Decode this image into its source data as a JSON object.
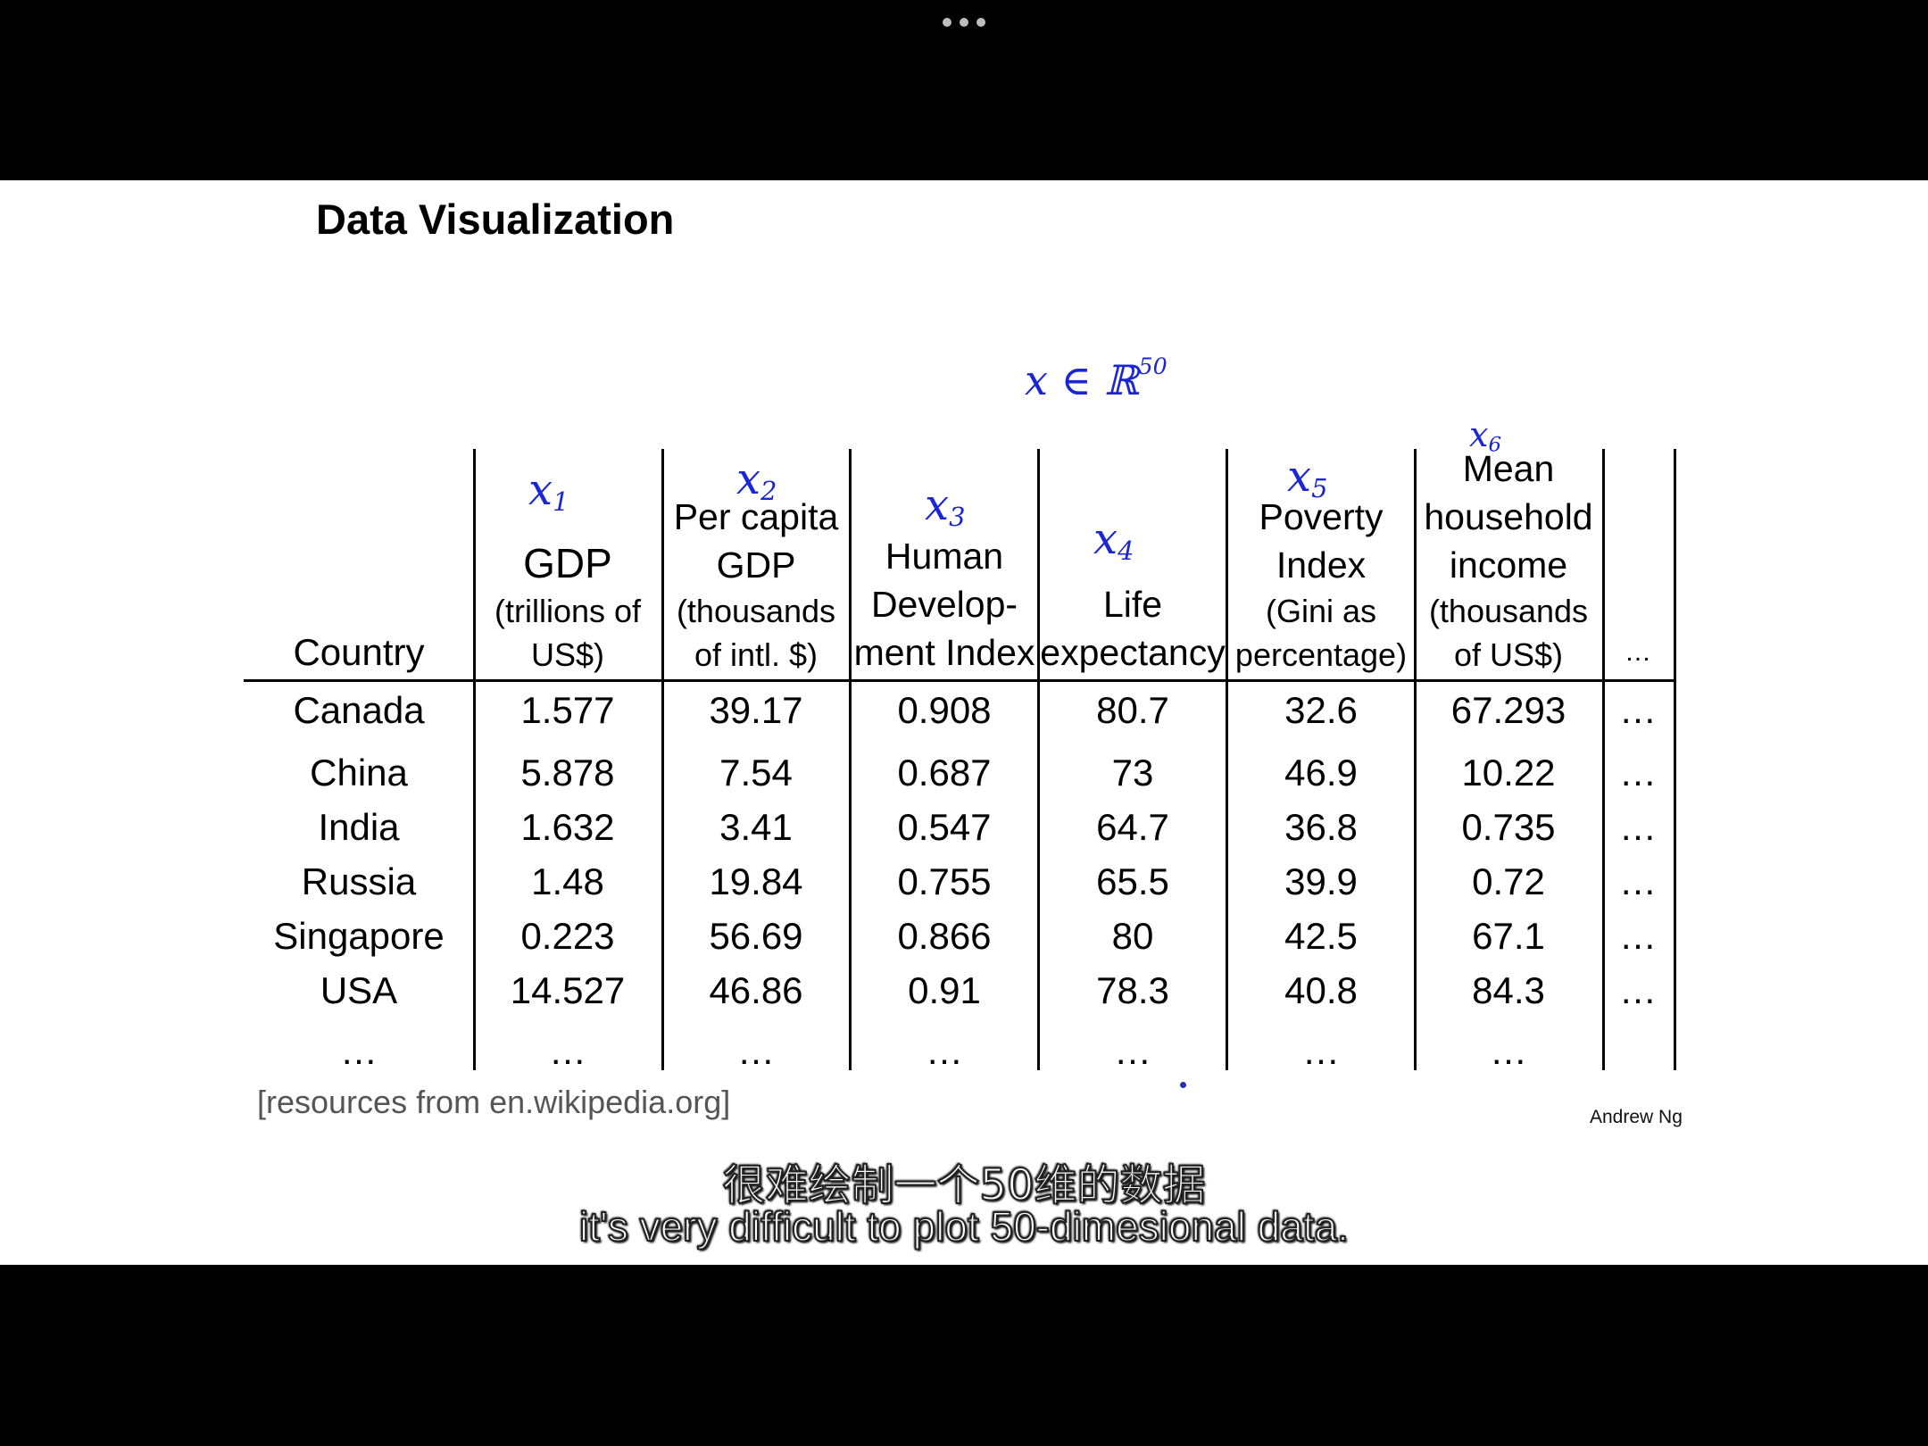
{
  "slide": {
    "title": "Data Visualization",
    "annotation": {
      "var": "x",
      "op": "∈",
      "set": "ℝ",
      "exp": "50"
    },
    "columns": [
      {
        "hw": "x",
        "hw_sub": "1",
        "lines": [
          "GDP"
        ],
        "sub_lines": [
          "(trillions of",
          "US$)"
        ]
      },
      {
        "hw": "x",
        "hw_sub": "2",
        "lines": [
          "Per capita",
          "GDP"
        ],
        "sub_lines": [
          "(thousands",
          "of intl. $)"
        ]
      },
      {
        "hw": "x",
        "hw_sub": "3",
        "lines": [
          "Human",
          "Develop-",
          "ment Index"
        ],
        "sub_lines": []
      },
      {
        "hw": "x",
        "hw_sub": "4",
        "lines": [
          "Life",
          "expectancy"
        ],
        "sub_lines": []
      },
      {
        "hw": "x",
        "hw_sub": "5",
        "lines": [
          "Poverty",
          "Index"
        ],
        "sub_lines": [
          "(Gini as",
          "percentage)"
        ]
      },
      {
        "hw": "x",
        "hw_sub": "6",
        "lines": [
          "Mean",
          "household",
          "income"
        ],
        "sub_lines": [
          "(thousands",
          "of US$)"
        ]
      },
      {
        "hw": "",
        "hw_sub": "",
        "lines": [
          "…"
        ],
        "sub_lines": []
      }
    ],
    "country_header": "Country",
    "rows": [
      {
        "country": "Canada",
        "values": [
          "1.577",
          "39.17",
          "0.908",
          "80.7",
          "32.6",
          "67.293",
          "…"
        ]
      },
      {
        "country": "China",
        "values": [
          "5.878",
          "7.54",
          "0.687",
          "73",
          "46.9",
          "10.22",
          "…"
        ]
      },
      {
        "country": "India",
        "values": [
          "1.632",
          "3.41",
          "0.547",
          "64.7",
          "36.8",
          "0.735",
          "…"
        ]
      },
      {
        "country": "Russia",
        "values": [
          "1.48",
          "19.84",
          "0.755",
          "65.5",
          "39.9",
          "0.72",
          "…"
        ]
      },
      {
        "country": "Singapore",
        "values": [
          "0.223",
          "56.69",
          "0.866",
          "80",
          "42.5",
          "67.1",
          "…"
        ]
      },
      {
        "country": "USA",
        "values": [
          "14.527",
          "46.86",
          "0.91",
          "78.3",
          "40.8",
          "84.3",
          "…"
        ]
      },
      {
        "country": "…",
        "values": [
          "…",
          "…",
          "…",
          "…",
          "…",
          "…",
          ""
        ]
      }
    ],
    "footnote": "[resources from en.wikipedia.org]",
    "author": "Andrew Ng"
  },
  "subtitles": {
    "zh": "很难绘制一个50维的数据",
    "en": "it's very difficult to plot 50-dimesional data."
  }
}
